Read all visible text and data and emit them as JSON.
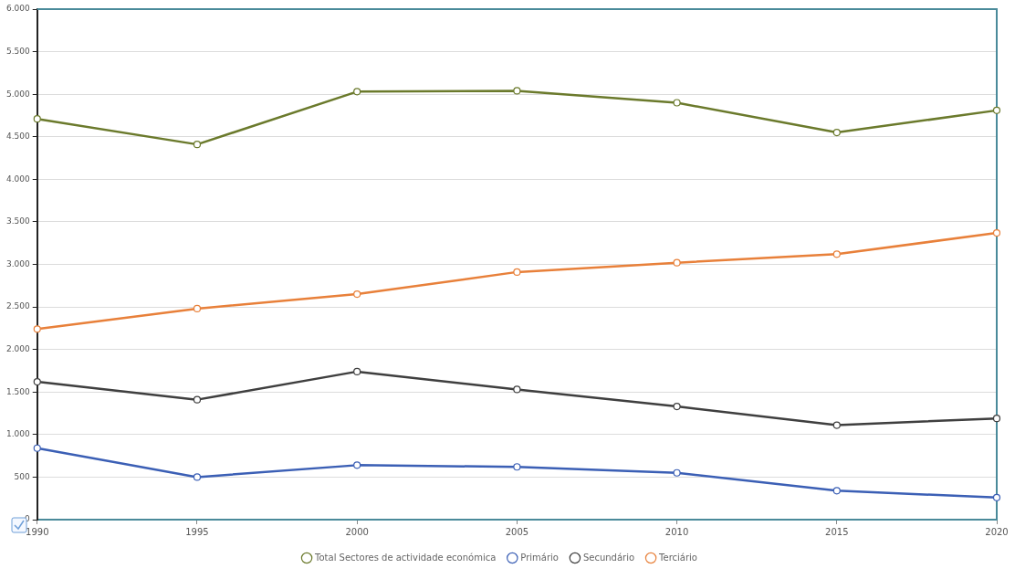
{
  "chart_data": {
    "type": "line",
    "categories": [
      "1990",
      "1995",
      "2000",
      "2005",
      "2010",
      "2015",
      "2020"
    ],
    "series": [
      {
        "name": "Total Sectores de actividade económica",
        "color": "#6b7a2c",
        "values": [
          4710,
          4410,
          5030,
          5040,
          4900,
          4550,
          4810
        ]
      },
      {
        "name": "Primário",
        "color": "#3b5fb5",
        "values": [
          840,
          500,
          640,
          620,
          550,
          340,
          260
        ]
      },
      {
        "name": "Secundário",
        "color": "#3f3f3f",
        "values": [
          1620,
          1410,
          1740,
          1530,
          1330,
          1110,
          1190
        ]
      },
      {
        "name": "Terciário",
        "color": "#e8803a",
        "values": [
          2240,
          2480,
          2650,
          2910,
          3020,
          3120,
          3370
        ]
      }
    ],
    "ylim": [
      0,
      6000
    ],
    "yticks": [
      {
        "value": 0,
        "label": "0"
      },
      {
        "value": 500,
        "label": "500"
      },
      {
        "value": 1000,
        "label": "1.000"
      },
      {
        "value": 1500,
        "label": "1.500"
      },
      {
        "value": 2000,
        "label": "2.000"
      },
      {
        "value": 2500,
        "label": "2.500"
      },
      {
        "value": 3000,
        "label": "3.000"
      },
      {
        "value": 3500,
        "label": "3.500"
      },
      {
        "value": 4000,
        "label": "4.000"
      },
      {
        "value": 4500,
        "label": "4.500"
      },
      {
        "value": 5000,
        "label": "5.000"
      },
      {
        "value": 5500,
        "label": "5.500"
      },
      {
        "value": 6000,
        "label": "6.000"
      }
    ],
    "grid": "y",
    "legend": "bottom",
    "marker": "circle",
    "line_style": "solid"
  }
}
